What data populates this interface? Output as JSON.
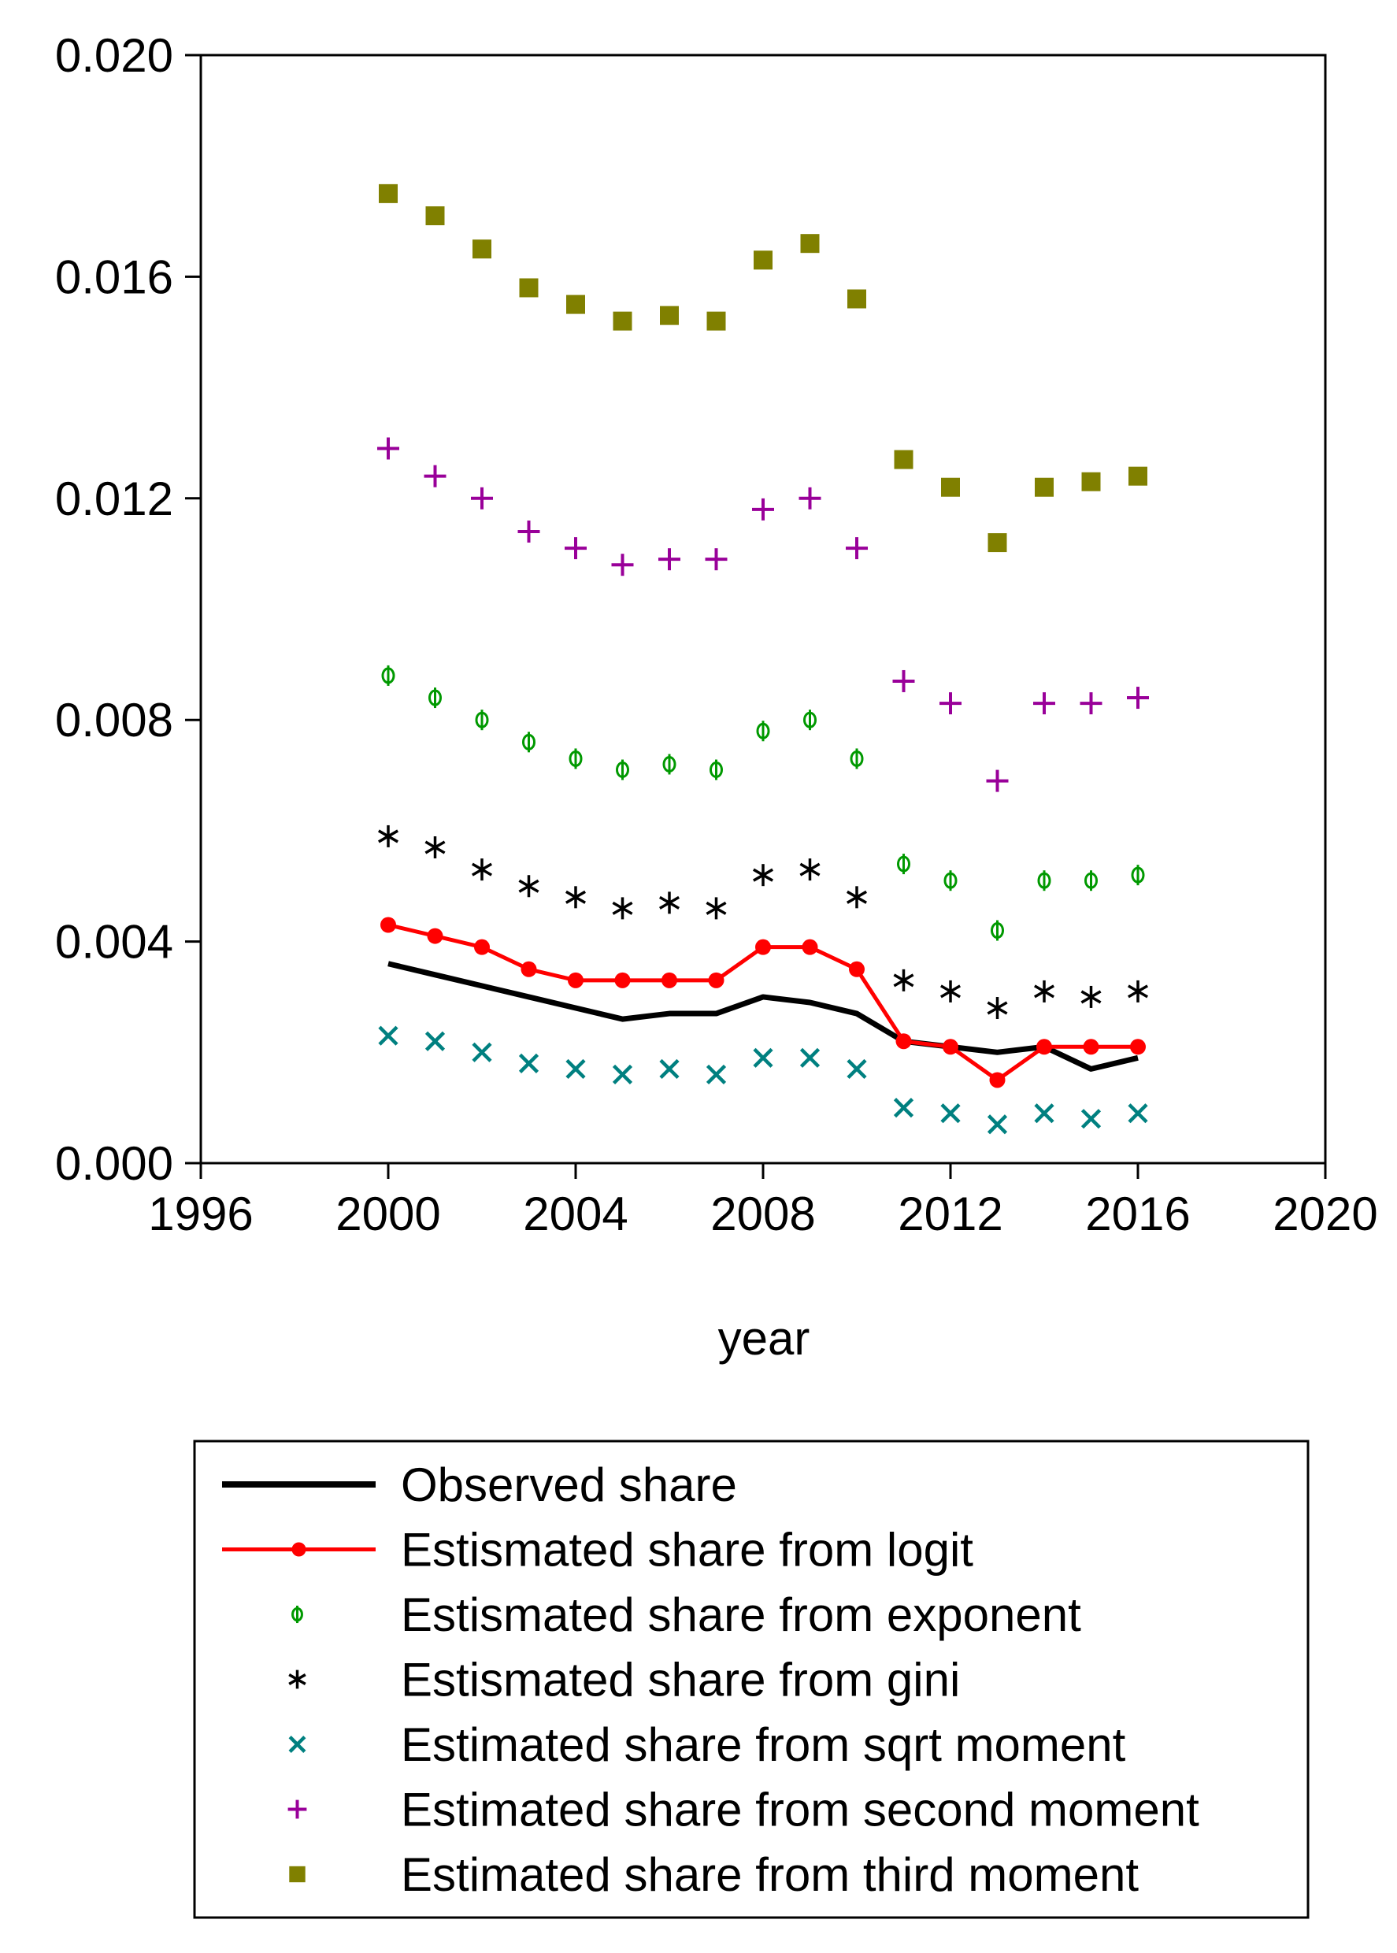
{
  "chart_data": {
    "type": "line",
    "title": "",
    "xlabel": "year",
    "ylabel": "",
    "xlim": [
      1996,
      2020
    ],
    "ylim": [
      0.0,
      0.02
    ],
    "xticks": [
      1996,
      2000,
      2004,
      2008,
      2012,
      2016,
      2020
    ],
    "xtick_labels": [
      "1996",
      "2000",
      "2004",
      "2008",
      "2012",
      "2016",
      "2020"
    ],
    "yticks": [
      0.0,
      0.004,
      0.008,
      0.012,
      0.016,
      0.02
    ],
    "ytick_labels": [
      "0.000",
      "0.004",
      "0.008",
      "0.012",
      "0.016",
      "0.020"
    ],
    "grid": false,
    "legend_position": "bottom, below chart",
    "x": [
      2000,
      2001,
      2002,
      2003,
      2004,
      2005,
      2006,
      2007,
      2008,
      2009,
      2010,
      2011,
      2012,
      2013,
      2014,
      2015,
      2016
    ],
    "series": [
      {
        "name": "Observed share",
        "style": "line",
        "color": "#000000",
        "values": [
          0.0036,
          0.0034,
          0.0032,
          0.003,
          0.0028,
          0.0026,
          0.0027,
          0.0027,
          0.003,
          0.0029,
          0.0027,
          0.0022,
          0.0021,
          0.002,
          0.0021,
          0.0017,
          0.0019
        ]
      },
      {
        "name": "Estismated share from logit",
        "style": "line-circle",
        "color": "#ff0000",
        "values": [
          0.0043,
          0.0041,
          0.0039,
          0.0035,
          0.0033,
          0.0033,
          0.0033,
          0.0033,
          0.0039,
          0.0039,
          0.0035,
          0.0022,
          0.0021,
          0.0015,
          0.0021,
          0.0021,
          0.0021
        ]
      },
      {
        "name": "Estismated share from exponent",
        "style": "phi",
        "color": "#009900",
        "values": [
          0.0088,
          0.0084,
          0.008,
          0.0076,
          0.0073,
          0.0071,
          0.0072,
          0.0071,
          0.0078,
          0.008,
          0.0073,
          0.0054,
          0.0051,
          0.0042,
          0.0051,
          0.0051,
          0.0052
        ]
      },
      {
        "name": "Estismated share from gini",
        "style": "asterisk",
        "color": "#000000",
        "values": [
          0.0059,
          0.0057,
          0.0053,
          0.005,
          0.0048,
          0.0046,
          0.0047,
          0.0046,
          0.0052,
          0.0053,
          0.0048,
          0.0033,
          0.0031,
          0.0028,
          0.0031,
          0.003,
          0.0031
        ]
      },
      {
        "name": "Estimated share from sqrt moment",
        "style": "x",
        "color": "#008080",
        "values": [
          0.0023,
          0.0022,
          0.002,
          0.0018,
          0.0017,
          0.0016,
          0.0017,
          0.0016,
          0.0019,
          0.0019,
          0.0017,
          0.001,
          0.0009,
          0.0007,
          0.0009,
          0.0008,
          0.0009
        ]
      },
      {
        "name": "Estimated share from second moment",
        "style": "plus",
        "color": "#990099",
        "values": [
          0.0129,
          0.0124,
          0.012,
          0.0114,
          0.0111,
          0.0108,
          0.0109,
          0.0109,
          0.0118,
          0.012,
          0.0111,
          0.0087,
          0.0083,
          0.0069,
          0.0083,
          0.0083,
          0.0084
        ]
      },
      {
        "name": "Estimated share from third moment",
        "style": "square",
        "color": "#808000",
        "values": [
          0.0175,
          0.0171,
          0.0165,
          0.0158,
          0.0155,
          0.0152,
          0.0153,
          0.0152,
          0.0163,
          0.0166,
          0.0156,
          0.0127,
          0.0122,
          0.0112,
          0.0122,
          0.0123,
          0.0124
        ]
      }
    ]
  }
}
